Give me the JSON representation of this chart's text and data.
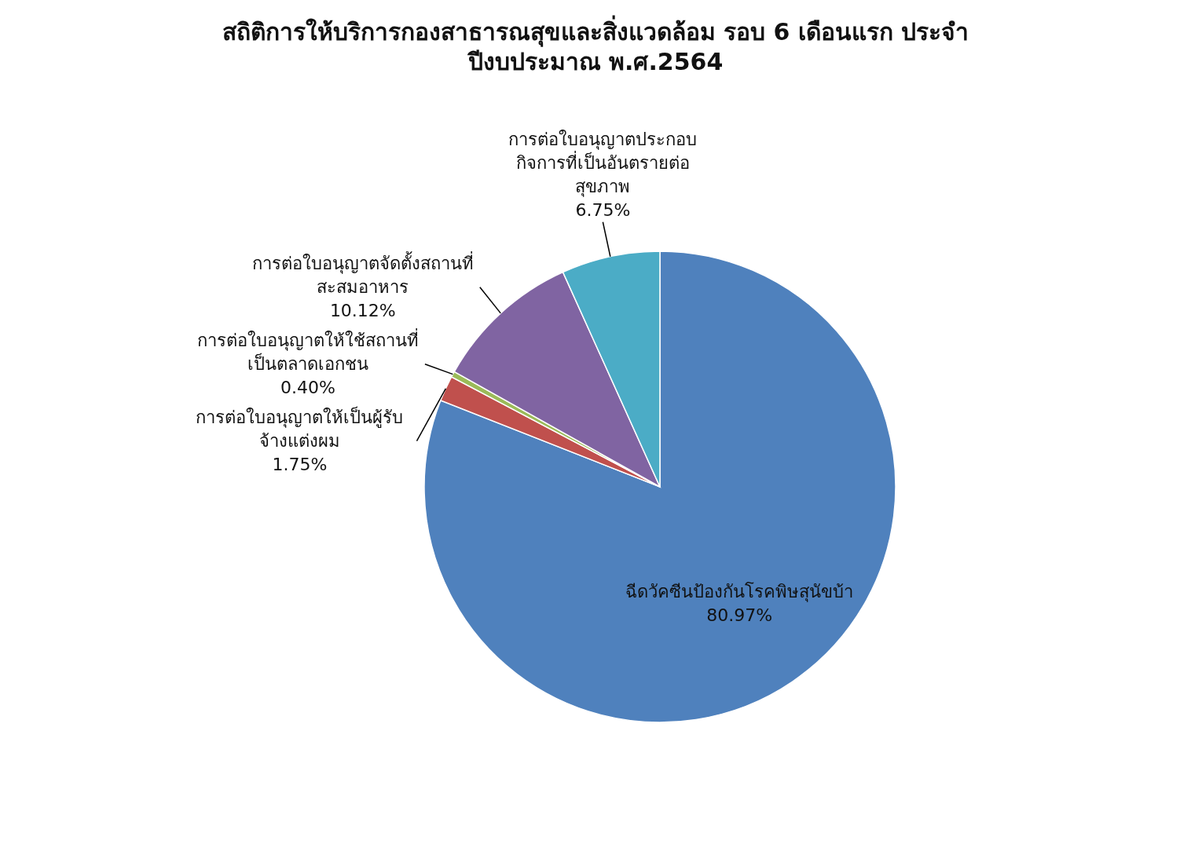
{
  "chart_data": {
    "type": "pie",
    "title": "สถิติการให้บริการกองสาธารณสุขและสิ่งแวดล้อม รอบ 6 เดือนแรก ประจำปีงบประมาณ พ.ศ.2564",
    "categories": [
      "ฉีดวัคซีนป้องกันโรคพิษสุนัขบ้า",
      "การต่อใบอนุญาตให้เป็นผู้รับจ้างแต่งผม",
      "การต่อใบอนุญาตให้ใช้สถานที่เป็นตลาดเอกชน",
      "การต่อใบอนุญาตจัดตั้งสถานที่สะสมอาหาร",
      "การต่อใบอนุญาตประกอบกิจการที่เป็นอันตรายต่อสุขภาพ"
    ],
    "values": [
      80.97,
      1.75,
      0.4,
      10.12,
      6.75
    ],
    "value_labels": [
      "80.97%",
      "1.75%",
      "0.40%",
      "10.12%",
      "6.75%"
    ],
    "colors": [
      "#4f81bd",
      "#c0504d",
      "#9bbb59",
      "#8064a2",
      "#4bacc6"
    ]
  }
}
